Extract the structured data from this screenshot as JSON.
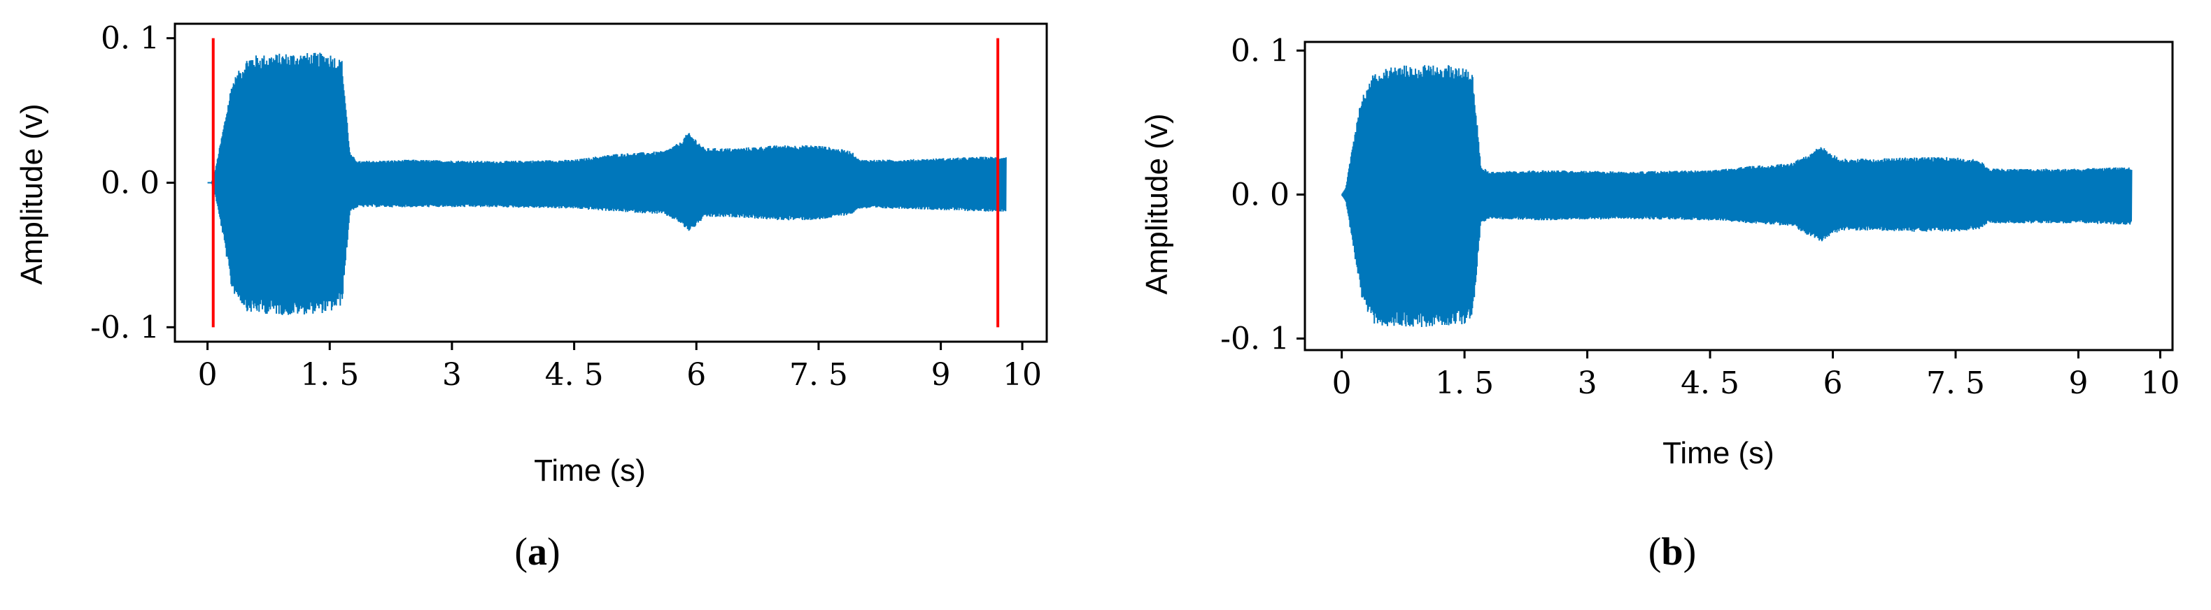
{
  "colors": {
    "signal": "#0077BB",
    "marker": "#FF0000",
    "axis": "#000000"
  },
  "panels": [
    {
      "open": "(",
      "letter": "a",
      "close": ")"
    },
    {
      "open": "(",
      "letter": "b",
      "close": ")"
    }
  ],
  "chart_data": [
    {
      "type": "line",
      "title": "",
      "xlabel": "Time  (s)",
      "ylabel": "Amplitude (v)",
      "xlim": [
        -0.4,
        10.3
      ],
      "ylim": [
        -0.11,
        0.11
      ],
      "xticks": [
        0,
        1.5,
        3,
        4.5,
        6,
        7.5,
        9,
        10
      ],
      "xtick_labels": [
        "0",
        "1. 5",
        "3",
        "4. 5",
        "6",
        "7. 5",
        "9",
        "10"
      ],
      "yticks": [
        0.1,
        0.0,
        -0.1
      ],
      "ytick_labels": [
        "0. 1",
        "0. 0",
        "-0. 1"
      ],
      "grid": false,
      "series": [
        {
          "kind": "amplitude_envelope",
          "t": [
            0.0,
            0.05,
            0.1,
            0.2,
            0.3,
            0.5,
            1.0,
            1.5,
            1.65,
            1.75,
            1.85,
            2.5,
            3.5,
            4.5,
            5.0,
            5.6,
            5.8,
            5.9,
            6.0,
            6.1,
            6.5,
            7.0,
            7.5,
            7.9,
            8.0,
            8.5,
            9.0,
            9.5,
            9.8
          ],
          "upper": [
            0.0,
            0.0,
            0.01,
            0.04,
            0.07,
            0.088,
            0.09,
            0.09,
            0.085,
            0.02,
            0.015,
            0.016,
            0.015,
            0.016,
            0.02,
            0.022,
            0.028,
            0.035,
            0.03,
            0.024,
            0.024,
            0.026,
            0.026,
            0.022,
            0.016,
            0.016,
            0.017,
            0.018,
            0.018
          ],
          "lower": [
            0.0,
            0.0,
            -0.01,
            -0.04,
            -0.075,
            -0.09,
            -0.092,
            -0.09,
            -0.085,
            -0.02,
            -0.017,
            -0.017,
            -0.017,
            -0.018,
            -0.02,
            -0.022,
            -0.028,
            -0.034,
            -0.03,
            -0.024,
            -0.024,
            -0.026,
            -0.026,
            -0.022,
            -0.018,
            -0.018,
            -0.019,
            -0.02,
            -0.02
          ]
        }
      ],
      "vertical_markers": [
        0.07,
        9.7
      ],
      "marker_ylim": [
        -0.1,
        0.1
      ]
    },
    {
      "type": "line",
      "title": "",
      "xlabel": "Time  (s)",
      "ylabel": "Amplitude (v)",
      "xlim": [
        -0.45,
        10.15
      ],
      "ylim": [
        -0.108,
        0.106
      ],
      "xticks": [
        0,
        1.5,
        3,
        4.5,
        6,
        7.5,
        9,
        10
      ],
      "xtick_labels": [
        "0",
        "1. 5",
        "3",
        "4. 5",
        "6",
        "7. 5",
        "9",
        "10"
      ],
      "yticks": [
        0.1,
        0.0,
        -0.1
      ],
      "ytick_labels": [
        "0. 1",
        "0. 0",
        "-0. 1"
      ],
      "grid": false,
      "series": [
        {
          "kind": "amplitude_envelope",
          "t": [
            0.0,
            0.05,
            0.15,
            0.25,
            0.4,
            0.6,
            1.0,
            1.5,
            1.6,
            1.7,
            1.8,
            2.5,
            3.5,
            4.5,
            5.0,
            5.5,
            5.75,
            5.85,
            6.0,
            6.1,
            6.5,
            7.0,
            7.5,
            7.8,
            7.9,
            8.5,
            9.0,
            9.5,
            9.65
          ],
          "upper": [
            0.0,
            0.005,
            0.04,
            0.07,
            0.085,
            0.09,
            0.09,
            0.09,
            0.085,
            0.02,
            0.016,
            0.017,
            0.016,
            0.017,
            0.02,
            0.022,
            0.03,
            0.034,
            0.028,
            0.025,
            0.025,
            0.026,
            0.026,
            0.024,
            0.018,
            0.018,
            0.018,
            0.019,
            0.019
          ],
          "lower": [
            0.0,
            -0.005,
            -0.04,
            -0.075,
            -0.09,
            -0.092,
            -0.092,
            -0.09,
            -0.085,
            -0.02,
            -0.017,
            -0.018,
            -0.017,
            -0.018,
            -0.02,
            -0.022,
            -0.03,
            -0.033,
            -0.028,
            -0.025,
            -0.025,
            -0.026,
            -0.026,
            -0.024,
            -0.02,
            -0.02,
            -0.02,
            -0.021,
            -0.021
          ]
        }
      ],
      "vertical_markers": []
    }
  ]
}
